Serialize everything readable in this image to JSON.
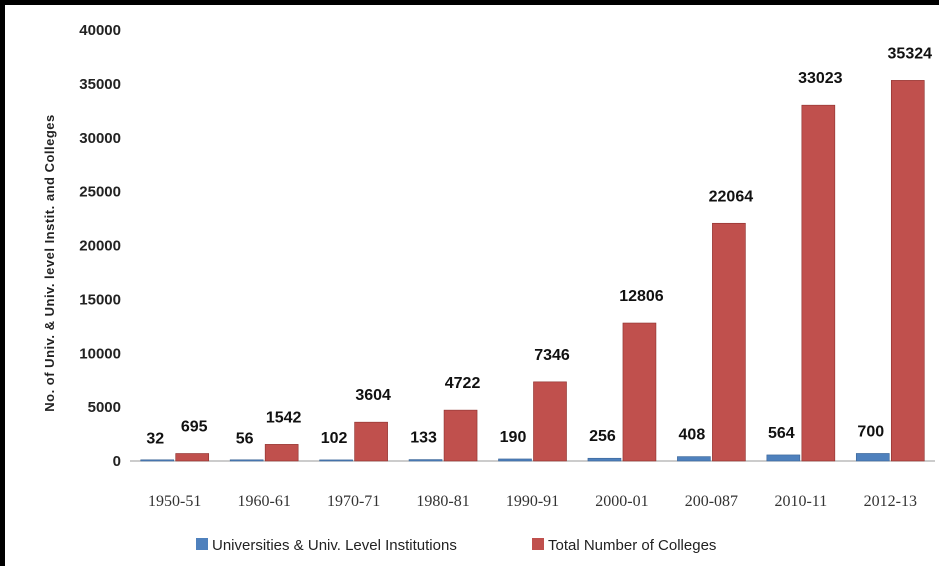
{
  "chart_data": {
    "type": "bar",
    "title": "",
    "xlabel": "",
    "ylabel": "No. of Univ. & Univ. level Instit. and Colleges",
    "ylim": [
      0,
      40000
    ],
    "yticks": [
      0,
      5000,
      10000,
      15000,
      20000,
      25000,
      30000,
      35000,
      40000
    ],
    "categories": [
      "1950-51",
      "1960-61",
      "1970-71",
      "1980-81",
      "1990-91",
      "2000-01",
      "200-087",
      "2010-11",
      "2012-13"
    ],
    "series": [
      {
        "name": "Universities & Univ. Level Institutions",
        "color": "#4f81bd",
        "values": [
          32,
          56,
          102,
          133,
          190,
          256,
          408,
          564,
          700
        ]
      },
      {
        "name": "Total Number of Colleges",
        "color": "#c0504d",
        "values": [
          695,
          1542,
          3604,
          4722,
          7346,
          12806,
          22064,
          33023,
          35324
        ]
      }
    ],
    "data_labels": true,
    "grid": false,
    "legend": "bottom"
  }
}
